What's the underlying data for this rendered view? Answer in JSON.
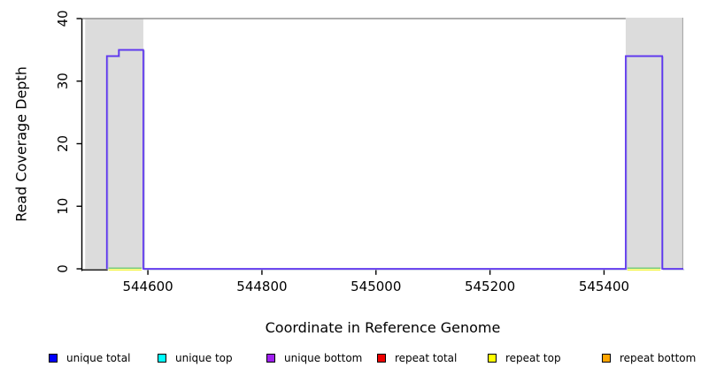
{
  "figure": {
    "xlabel": "Coordinate in Reference Genome",
    "ylabel": "Read Coverage Depth"
  },
  "chart_data": {
    "type": "line",
    "subtype": "step-coverage",
    "title": "",
    "xlabel": "Coordinate in Reference Genome",
    "ylabel": "Read Coverage Depth",
    "xlim": [
      544485,
      545539
    ],
    "ylim": [
      0,
      40
    ],
    "xticks": [
      544600,
      544800,
      545000,
      545200,
      545400
    ],
    "yticks": [
      0,
      10,
      20,
      30,
      40
    ],
    "grid": false,
    "legend_position": "bottom",
    "masked_regions": [
      {
        "x0": 544490,
        "x1": 544592
      },
      {
        "x0": 545438,
        "x1": 545539
      }
    ],
    "cap_line": {
      "y": 40,
      "x0": 544485,
      "x1": 545438,
      "color": "#909090"
    },
    "series": [
      {
        "name": "unique total",
        "legend_color": "#0000FF",
        "role": "shadow",
        "points": [
          [
            544528,
            0
          ],
          [
            544528,
            34
          ],
          [
            544549,
            34
          ],
          [
            544549,
            35
          ],
          [
            544592,
            35
          ],
          [
            544592,
            0
          ],
          [
            545438,
            0
          ],
          [
            545438,
            34
          ],
          [
            545502,
            34
          ],
          [
            545502,
            0
          ],
          [
            545539,
            0
          ]
        ]
      },
      {
        "name": "unique bottom",
        "legend_color": "#A020F0",
        "role": "main",
        "points": [
          [
            544528,
            0
          ],
          [
            544528,
            34
          ],
          [
            544549,
            34
          ],
          [
            544549,
            35
          ],
          [
            544592,
            35
          ],
          [
            544592,
            0
          ],
          [
            545438,
            0
          ],
          [
            545438,
            34
          ],
          [
            545502,
            34
          ],
          [
            545502,
            0
          ],
          [
            545539,
            0
          ]
        ]
      }
    ],
    "zero_overlays": [
      {
        "name": "repeat top zero",
        "color": "#F0F000",
        "offset": 1.2,
        "spans": [
          [
            544531,
            544589
          ],
          [
            545441,
            545499
          ]
        ]
      },
      {
        "name": "unique top zero",
        "color": "#58C858",
        "offset": -0.8,
        "spans": [
          [
            544531,
            544589
          ],
          [
            545441,
            545499
          ]
        ]
      }
    ],
    "render_colors": {
      "line": "#5F35EF",
      "line_shadow": "#B0B5DA",
      "masked_fill": "#DCDCDC",
      "masked_edge": "#A8A8A8",
      "axis": "#000000"
    }
  },
  "legend": {
    "items": [
      {
        "label": "unique total",
        "color": "#0000FF"
      },
      {
        "label": "unique top",
        "color": "#00FFFF"
      },
      {
        "label": "unique bottom",
        "color": "#A020F0"
      },
      {
        "label": "repeat total",
        "color": "#EE0000"
      },
      {
        "label": "repeat top",
        "color": "#FFFF00"
      },
      {
        "label": "repeat bottom",
        "color": "#FFA500"
      }
    ]
  }
}
